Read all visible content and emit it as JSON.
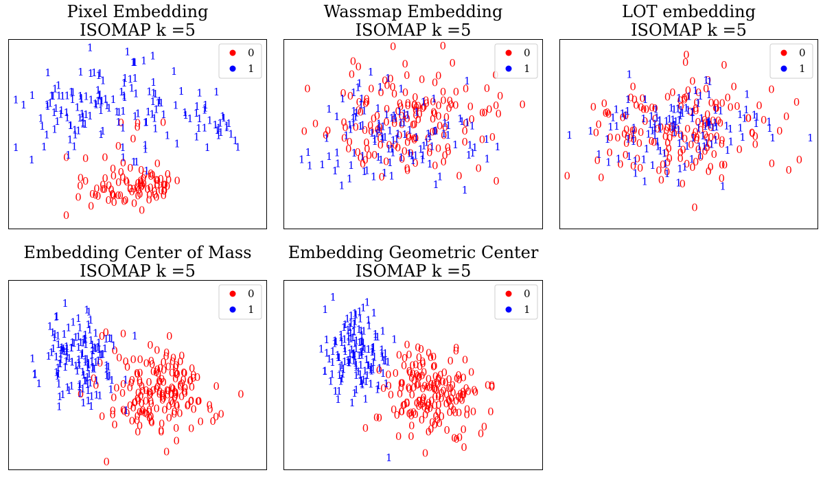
{
  "figure": {
    "colors": {
      "0": "#ff0000",
      "1": "#0000ff"
    }
  },
  "chart_data": [
    {
      "type": "scatter",
      "title": "Pixel Embedding",
      "subtitle": "ISOMAP k =5",
      "marker": "digit-label",
      "legend": {
        "placement": "top-right",
        "entries": [
          "0",
          "1"
        ]
      },
      "grid": false,
      "axis_ticks": false,
      "xlim": [
        0,
        1
      ],
      "ylim": [
        0,
        1
      ],
      "series": [
        {
          "name": "0",
          "color": "#ff0000",
          "centers": [
            [
              0.55,
              0.22,
              0.1,
              0.09,
              40
            ],
            [
              0.4,
              0.22,
              0.16,
              0.1,
              38
            ],
            [
              0.45,
              0.45,
              0.2,
              0.15,
              12
            ]
          ]
        },
        {
          "name": "1",
          "color": "#0000ff",
          "centers": [
            [
              0.4,
              0.65,
              0.28,
              0.2,
              110
            ],
            [
              0.22,
              0.55,
              0.12,
              0.12,
              20
            ],
            [
              0.8,
              0.55,
              0.12,
              0.14,
              25
            ]
          ]
        }
      ]
    },
    {
      "type": "scatter",
      "title": "Wassmap Embedding",
      "subtitle": "ISOMAP k =5",
      "marker": "digit-label",
      "legend": {
        "placement": "top-right",
        "entries": [
          "0",
          "1"
        ]
      },
      "grid": false,
      "axis_ticks": false,
      "xlim": [
        0,
        1
      ],
      "ylim": [
        0,
        1
      ],
      "series": [
        {
          "name": "0",
          "color": "#ff0000",
          "centers": [
            [
              0.5,
              0.55,
              0.32,
              0.28,
              150
            ]
          ]
        },
        {
          "name": "1",
          "color": "#0000ff",
          "centers": [
            [
              0.45,
              0.5,
              0.28,
              0.26,
              115
            ]
          ]
        }
      ]
    },
    {
      "type": "scatter",
      "title": "LOT embedding",
      "subtitle": "ISOMAP k =5",
      "marker": "digit-label",
      "legend": {
        "placement": "top-right",
        "entries": [
          "0",
          "1"
        ]
      },
      "grid": false,
      "axis_ticks": false,
      "xlim": [
        0,
        1
      ],
      "ylim": [
        0,
        1
      ],
      "series": [
        {
          "name": "0",
          "color": "#ff0000",
          "centers": [
            [
              0.45,
              0.5,
              0.3,
              0.25,
              150
            ]
          ]
        },
        {
          "name": "1",
          "color": "#0000ff",
          "centers": [
            [
              0.45,
              0.52,
              0.32,
              0.25,
              120
            ]
          ]
        }
      ]
    },
    {
      "type": "scatter",
      "title": "Embedding Center of Mass",
      "subtitle": "ISOMAP k =5",
      "marker": "digit-label",
      "legend": {
        "placement": "top-right",
        "entries": [
          "0",
          "1"
        ]
      },
      "grid": false,
      "axis_ticks": false,
      "xlim": [
        0,
        1
      ],
      "ylim": [
        0,
        1
      ],
      "series": [
        {
          "name": "0",
          "color": "#ff0000",
          "centers": [
            [
              0.58,
              0.4,
              0.2,
              0.22,
              170
            ]
          ]
        },
        {
          "name": "1",
          "color": "#0000ff",
          "centers": [
            [
              0.28,
              0.6,
              0.13,
              0.22,
              140
            ]
          ]
        }
      ]
    },
    {
      "type": "scatter",
      "title": "Embedding Geometric Center",
      "subtitle": "ISOMAP k =5",
      "marker": "digit-label",
      "legend": {
        "placement": "top-right",
        "entries": [
          "0",
          "1"
        ]
      },
      "grid": false,
      "axis_ticks": false,
      "xlim": [
        0,
        1
      ],
      "ylim": [
        0,
        1
      ],
      "series": [
        {
          "name": "0",
          "color": "#ff0000",
          "centers": [
            [
              0.58,
              0.4,
              0.18,
              0.22,
              170
            ]
          ]
        },
        {
          "name": "1",
          "color": "#0000ff",
          "centers": [
            [
              0.28,
              0.6,
              0.12,
              0.22,
              140
            ]
          ]
        }
      ]
    }
  ]
}
